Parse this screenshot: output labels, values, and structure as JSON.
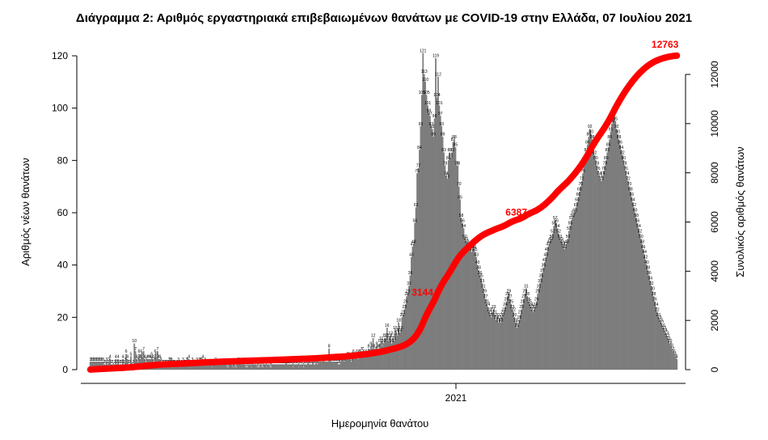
{
  "chart_data": {
    "type": "bar",
    "title": "Διάγραμμα 2: Αριθμός εργαστηριακά επιβεβαιωμένων θανάτων με COVID-19 στην Ελλάδα, 07 Ιουλίου 2021",
    "xlabel": "Ημερομηνία θανάτου",
    "ylabel": "Αριθμός νέων θανάτων",
    "y2label": "Συνολικός αριθμός θανάτων",
    "x_tick_label": "2021",
    "ylim": [
      0,
      120
    ],
    "yticks": [
      0,
      20,
      40,
      60,
      80,
      100,
      120
    ],
    "y2lim": [
      0,
      12000
    ],
    "y2ticks": [
      0,
      2000,
      4000,
      6000,
      8000,
      10000,
      12000
    ],
    "bar_color": "#808080",
    "line_color": "#ff0000",
    "daily_deaths": [
      3,
      3,
      3,
      3,
      3,
      3,
      3,
      3,
      3,
      3,
      3,
      3,
      2,
      2,
      3,
      2,
      3,
      4,
      2,
      2,
      1,
      2,
      4,
      2,
      4,
      2,
      2,
      2,
      4,
      2,
      3,
      6,
      4,
      2,
      2,
      5,
      1,
      2,
      10,
      7,
      4,
      3,
      6,
      4,
      6,
      5,
      7,
      4,
      3,
      4,
      4,
      4,
      4,
      5,
      4,
      3,
      6,
      5,
      7,
      4,
      4,
      3,
      2,
      2,
      2,
      2,
      2,
      2,
      3,
      3,
      3,
      2,
      2,
      2,
      1,
      2,
      3,
      2,
      1,
      2,
      3,
      2,
      2,
      3,
      3,
      4,
      2,
      2,
      3,
      2,
      2,
      2,
      3,
      2,
      3,
      3,
      3,
      4,
      2,
      3,
      2,
      2,
      2,
      2,
      2,
      1,
      2,
      2,
      3,
      2,
      2,
      2,
      2,
      2,
      2,
      2,
      2,
      2,
      1,
      1,
      2,
      2,
      2,
      1,
      2,
      1,
      1,
      2,
      3,
      2,
      2,
      2,
      2,
      2,
      1,
      1,
      1,
      2,
      2,
      1,
      2,
      2,
      2,
      2,
      1,
      1,
      1,
      2,
      1,
      1,
      2,
      2,
      1,
      2,
      2,
      1,
      1,
      2,
      2,
      2,
      2,
      2,
      2,
      2,
      2,
      2,
      2,
      2,
      2,
      3,
      2,
      2,
      2,
      2,
      2,
      1,
      2,
      2,
      2,
      2,
      1,
      2,
      2,
      2,
      1,
      2,
      2,
      2,
      3,
      2,
      2,
      2,
      3,
      2,
      2,
      3,
      2,
      3,
      3,
      3,
      3,
      4,
      3,
      3,
      3,
      3,
      8,
      4,
      3,
      3,
      3,
      3,
      3,
      3,
      2,
      2,
      3,
      4,
      4,
      3,
      4,
      4,
      5,
      5,
      4,
      3,
      5,
      6,
      5,
      5,
      6,
      4,
      6,
      6,
      7,
      7,
      6,
      5,
      6,
      5,
      8,
      6,
      9,
      8,
      12,
      8,
      7,
      9,
      8,
      8,
      10,
      11,
      9,
      10,
      12,
      12,
      16,
      11,
      12,
      13,
      10,
      12,
      11,
      15,
      14,
      13,
      18,
      14,
      15,
      20,
      21,
      23,
      25,
      28,
      29,
      32,
      36,
      43,
      47,
      48,
      56,
      62,
      75,
      77,
      84,
      93,
      105,
      121,
      113,
      110,
      105,
      101,
      98,
      97,
      93,
      92,
      89,
      96,
      119,
      104,
      112,
      101,
      97,
      93,
      89,
      83,
      78,
      74,
      73,
      80,
      83,
      81,
      83,
      87,
      88,
      85,
      78,
      78,
      70,
      65,
      58,
      56,
      54,
      50,
      49,
      48,
      47,
      46,
      47,
      45,
      46,
      46,
      45,
      43,
      40,
      38,
      36,
      35,
      33,
      31,
      29,
      27,
      25,
      24,
      22,
      21,
      20,
      22,
      23,
      21,
      19,
      20,
      18,
      19,
      18,
      20,
      21,
      22,
      24,
      26,
      28,
      29,
      27,
      25,
      23,
      22,
      20,
      18,
      16,
      17,
      19,
      21,
      23,
      25,
      27,
      29,
      31,
      28,
      26,
      25,
      24,
      23,
      22,
      23,
      24,
      26,
      29,
      31,
      33,
      35,
      37,
      39,
      41,
      43,
      45,
      47,
      48,
      49,
      50,
      52,
      55,
      57,
      56,
      54,
      52,
      50,
      49,
      48,
      47,
      46,
      47,
      48,
      50,
      53,
      55,
      57,
      58,
      59,
      60,
      62,
      64,
      66,
      68,
      70,
      72,
      75,
      78,
      80,
      83,
      86,
      89,
      92,
      90,
      88,
      85,
      82,
      80,
      78,
      76,
      74,
      73,
      72,
      74,
      76,
      78,
      80,
      83,
      85,
      88,
      91,
      94,
      97,
      99,
      95,
      92,
      90,
      88,
      86,
      84,
      82,
      80,
      78,
      76,
      74,
      72,
      70,
      68,
      66,
      64,
      62,
      60,
      58,
      56,
      54,
      52,
      50,
      48,
      46,
      44,
      42,
      40,
      38,
      36,
      34,
      32,
      30,
      28,
      26,
      24,
      22,
      20,
      19,
      18,
      17,
      16,
      15,
      14,
      13,
      12,
      11,
      10,
      9,
      8,
      7,
      6,
      5,
      4
    ],
    "cumulative_labels": [
      {
        "label": "3144",
        "value": 3144
      },
      {
        "label": "6387",
        "value": 6387
      },
      {
        "label": "12763",
        "value": 12763
      }
    ]
  }
}
